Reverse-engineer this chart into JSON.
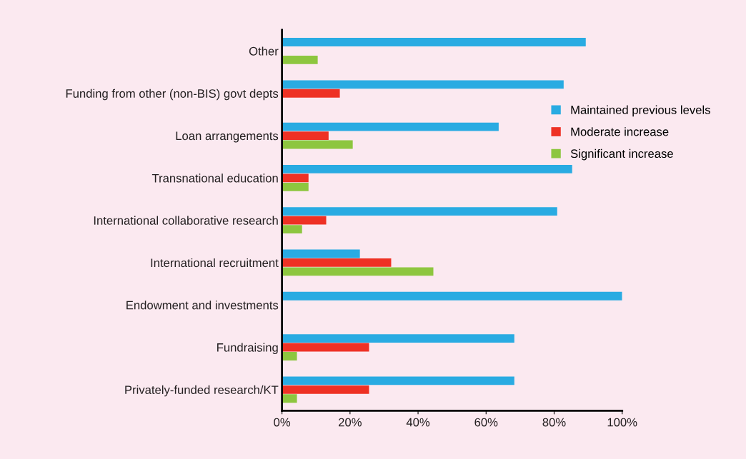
{
  "chart_data": {
    "type": "bar",
    "orientation": "horizontal",
    "categories": [
      "Other",
      "Funding from other (non-BIS) govt depts",
      "Loan arrangements",
      "Transnational education",
      "International collaborative research",
      "International recruitment",
      "Endowment and investments",
      "Fundraising",
      "Privately-funded research/KT"
    ],
    "series": [
      {
        "name": "Maintained previous levels",
        "color": "#29abe2",
        "values": [
          89.3,
          82.8,
          63.7,
          85.3,
          80.9,
          22.9,
          100,
          68.3,
          68.3
        ]
      },
      {
        "name": "Moderate increase",
        "color": "#ee3124",
        "values": [
          null,
          17.0,
          13.7,
          7.8,
          13.0,
          32.1,
          null,
          25.6,
          25.6
        ]
      },
      {
        "name": "Significant increase",
        "color": "#8dc63f",
        "values": [
          10.5,
          null,
          20.8,
          7.8,
          5.9,
          44.5,
          null,
          4.4,
          4.4
        ]
      }
    ],
    "xlim": [
      0,
      100
    ],
    "xticks": [
      {
        "value": 0,
        "label": "0%"
      },
      {
        "value": 20,
        "label": "20%"
      },
      {
        "value": 40,
        "label": "40%"
      },
      {
        "value": 60,
        "label": "60%"
      },
      {
        "value": 80,
        "label": "80%"
      },
      {
        "value": 100,
        "label": "100%"
      }
    ],
    "grid": false,
    "legend": "right"
  }
}
